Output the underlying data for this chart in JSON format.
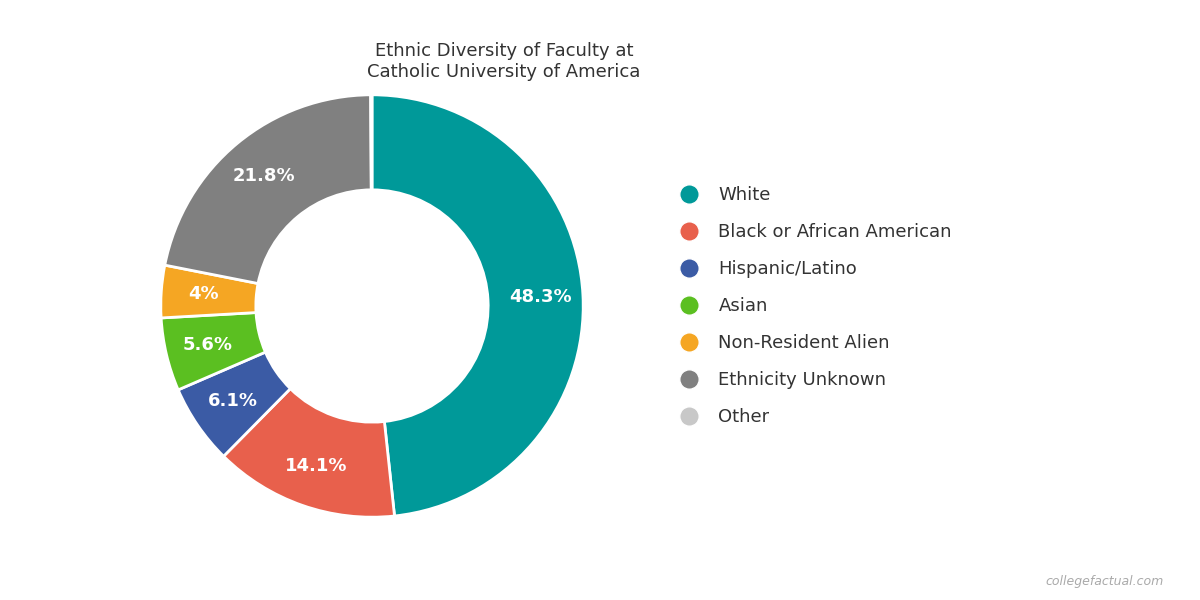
{
  "title": "Ethnic Diversity of Faculty at\nCatholic University of America",
  "labels": [
    "White",
    "Black or African American",
    "Hispanic/Latino",
    "Asian",
    "Non-Resident Alien",
    "Ethnicity Unknown",
    "Other"
  ],
  "values": [
    48.3,
    14.1,
    6.1,
    5.6,
    4.0,
    21.8,
    0.1
  ],
  "colors": [
    "#009999",
    "#E8604C",
    "#3B5BA5",
    "#5BBF21",
    "#F5A623",
    "#808080",
    "#C8C8C8"
  ],
  "pct_labels": [
    "48.3%",
    "14.1%",
    "6.1%",
    "5.6%",
    "4%",
    "21.8%",
    ""
  ],
  "legend_labels": [
    "White",
    "Black or African American",
    "Hispanic/Latino",
    "Asian",
    "Non-Resident Alien",
    "Ethnicity Unknown",
    "Other"
  ],
  "title_fontsize": 13,
  "label_fontsize": 13,
  "legend_fontsize": 13,
  "background_color": "#ffffff",
  "watermark": "collegefactual.com"
}
